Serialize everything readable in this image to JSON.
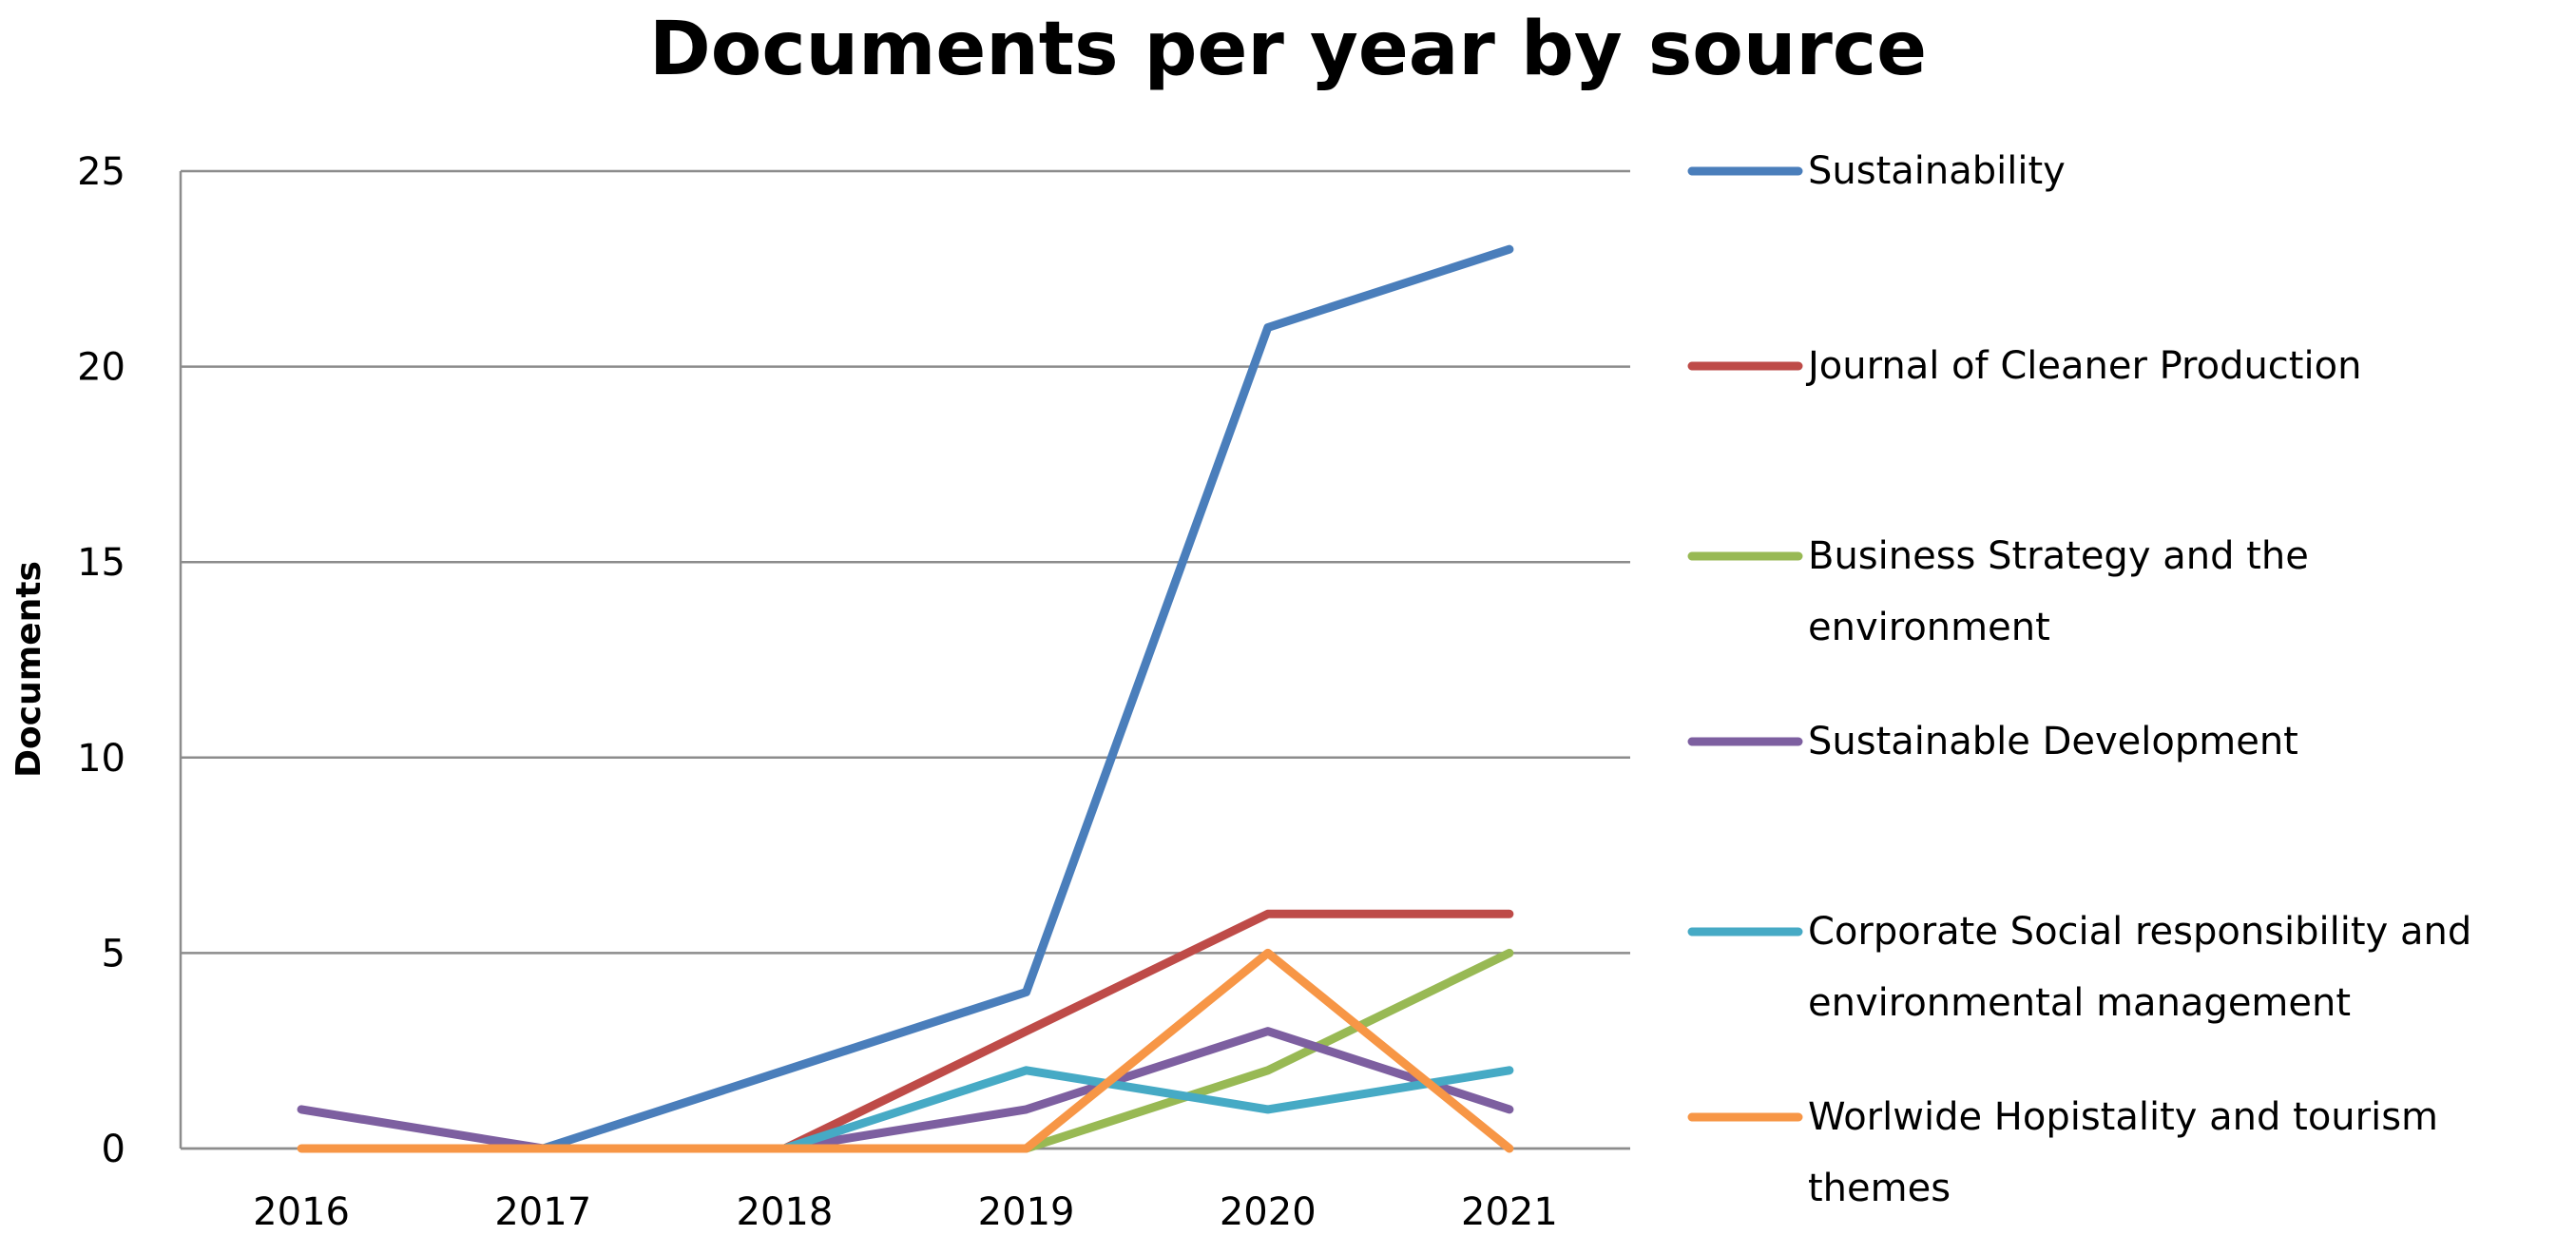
{
  "chart_data": {
    "type": "line",
    "title": "Documents per year by source",
    "xlabel": "",
    "ylabel": "Documents",
    "ylim": [
      0,
      25
    ],
    "yticks": [
      0,
      5,
      10,
      15,
      20,
      25
    ],
    "grid": true,
    "legend_position": "right",
    "categories": [
      "2016",
      "2017",
      "2018",
      "2019",
      "2020",
      "2021"
    ],
    "series": [
      {
        "name": "Sustainability",
        "legend_lines": [
          "Sustainability"
        ],
        "color": "#4a7ebb",
        "values": [
          null,
          0,
          2,
          4,
          21,
          23
        ]
      },
      {
        "name": "Journal of Cleaner Production",
        "legend_lines": [
          "Journal of Cleaner Production"
        ],
        "color": "#be4b48",
        "values": [
          null,
          null,
          0,
          3,
          6,
          6
        ]
      },
      {
        "name": "Business Strategy and the environment",
        "legend_lines": [
          "Business Strategy and the",
          "environment"
        ],
        "color": "#98b954",
        "values": [
          null,
          null,
          null,
          0,
          2,
          5
        ]
      },
      {
        "name": "Sustainable Development",
        "legend_lines": [
          "Sustainable Development"
        ],
        "color": "#7d5fa0",
        "values": [
          1,
          0,
          0,
          1,
          3,
          1
        ]
      },
      {
        "name": "Corporate Social responsibility and environmental management",
        "legend_lines": [
          "Corporate Social responsibility and",
          "environmental management"
        ],
        "color": "#46aac5",
        "values": [
          null,
          null,
          0,
          2,
          1,
          2
        ]
      },
      {
        "name": "Worlwide Hopistality and tourism themes",
        "legend_lines": [
          "Worlwide Hopistality and tourism",
          "themes"
        ],
        "color": "#f79646",
        "values": [
          0,
          0,
          0,
          0,
          5,
          0
        ]
      }
    ]
  }
}
